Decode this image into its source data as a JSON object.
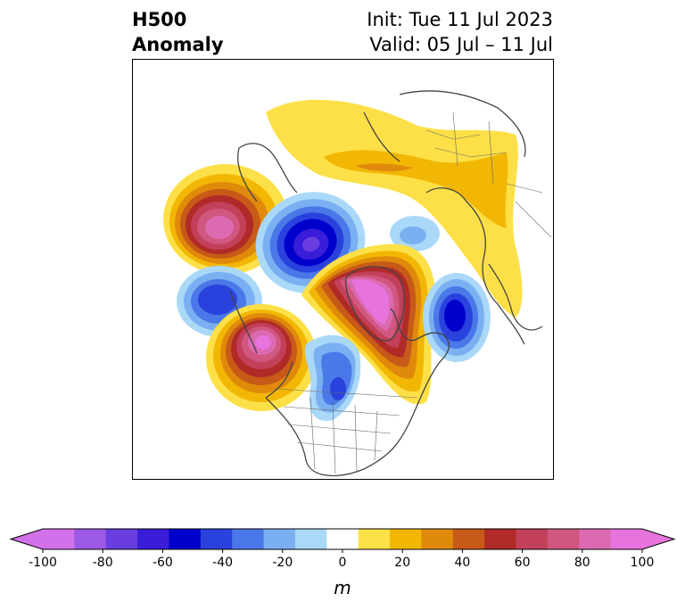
{
  "header": {
    "title_line1": "H500",
    "title_line2": "Anomaly",
    "init_text": "Init: Tue 11 Jul 2023",
    "valid_text": "Valid: 05 Jul – 11 Jul"
  },
  "colorbar": {
    "unit": "m",
    "ticks": [
      "-100",
      "-80",
      "-60",
      "-40",
      "-20",
      "0",
      "20",
      "40",
      "60",
      "80",
      "100"
    ],
    "levels": [
      -100,
      -90,
      -80,
      -70,
      -60,
      -50,
      -40,
      -30,
      -20,
      -10,
      10,
      20,
      30,
      40,
      50,
      60,
      70,
      80,
      90,
      100
    ],
    "colors": [
      "#d371ea",
      "#9b59e6",
      "#6a3de0",
      "#3a1dd8",
      "#0000cd",
      "#2a42dd",
      "#4a78e8",
      "#7ab0f2",
      "#aad8f8",
      "#ffffff",
      "#fde047",
      "#f2b705",
      "#e08a0b",
      "#c75a18",
      "#b02a27",
      "#c2405a",
      "#d0577f",
      "#db6ab0",
      "#e674dc"
    ],
    "extend_low_color": "#d371ea",
    "extend_high_color": "#e674dc"
  }
}
